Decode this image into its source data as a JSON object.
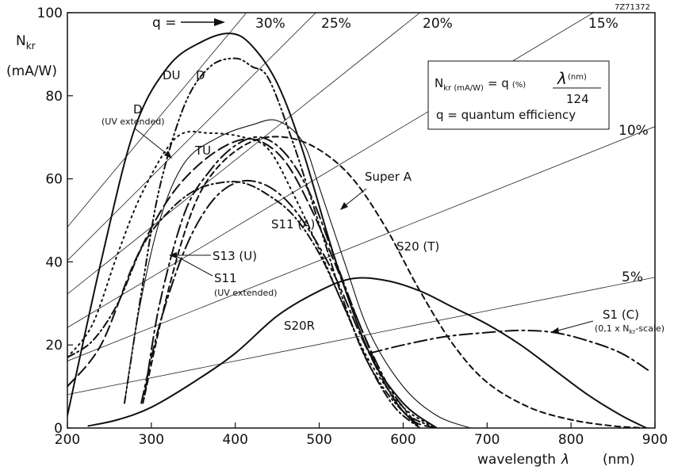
{
  "chart_data": {
    "type": "line",
    "figure_id": "7Z71372",
    "xaxis": {
      "label": "wavelength",
      "symbol": "λ",
      "unit": "(nm)",
      "range": [
        200,
        900
      ],
      "ticks": [
        "200",
        "300",
        "400",
        "500",
        "600",
        "700",
        "800",
        "900"
      ]
    },
    "yaxis": {
      "label_main": "N",
      "label_sub": "kr",
      "unit": "(mA/W)",
      "range": [
        0,
        100
      ],
      "ticks": [
        "0",
        "20",
        "40",
        "60",
        "80",
        "100"
      ]
    },
    "grid": false,
    "legend": "none",
    "formula_box": {
      "line1_lhs": "N",
      "line1_lhs_sub": "kr (mA/W)",
      "line1_eq": "= q",
      "line1_q_unit": "(%)",
      "line1_lambda": "λ",
      "line1_lambda_unit": "(nm)",
      "line1_denominator": "124",
      "line2": "q = quantum efficiency"
    },
    "q_indicator": {
      "label": "q =",
      "arrow": "→"
    },
    "q_lines": [
      {
        "label": "30%",
        "q": 30
      },
      {
        "label": "25%",
        "q": 25
      },
      {
        "label": "20%",
        "q": 20
      },
      {
        "label": "15%",
        "q": 15
      },
      {
        "label": "10%",
        "q": 10
      },
      {
        "label": "5%",
        "q": 5
      }
    ],
    "series": [
      {
        "name": "DU",
        "style": "solid",
        "points": [
          [
            200,
            3
          ],
          [
            240,
            40
          ],
          [
            280,
            72
          ],
          [
            320,
            87
          ],
          [
            360,
            93
          ],
          [
            395,
            95
          ],
          [
            420,
            92
          ],
          [
            450,
            83
          ],
          [
            480,
            67
          ],
          [
            520,
            40
          ],
          [
            560,
            18
          ],
          [
            600,
            6
          ],
          [
            640,
            0
          ]
        ]
      },
      {
        "name": "D",
        "style": "dash-dot-dot",
        "points": [
          [
            268,
            6
          ],
          [
            290,
            35
          ],
          [
            310,
            58
          ],
          [
            340,
            78
          ],
          [
            370,
            87
          ],
          [
            400,
            89
          ],
          [
            420,
            87
          ],
          [
            440,
            84
          ],
          [
            470,
            68
          ],
          [
            500,
            49
          ],
          [
            530,
            30
          ],
          [
            560,
            15
          ],
          [
            600,
            4
          ],
          [
            640,
            0
          ]
        ]
      },
      {
        "name": "D (UV extended)",
        "style": "dotted",
        "points": [
          [
            200,
            17
          ],
          [
            230,
            25
          ],
          [
            260,
            42
          ],
          [
            290,
            57
          ],
          [
            330,
            70
          ],
          [
            370,
            71
          ],
          [
            410,
            70
          ],
          [
            440,
            67
          ],
          [
            470,
            56
          ],
          [
            500,
            43
          ],
          [
            530,
            29
          ],
          [
            560,
            16
          ],
          [
            600,
            5
          ],
          [
            640,
            0
          ]
        ]
      },
      {
        "name": "TU",
        "style": "solid-thin",
        "points": [
          [
            268,
            6
          ],
          [
            285,
            28
          ],
          [
            310,
            50
          ],
          [
            340,
            64
          ],
          [
            380,
            70
          ],
          [
            420,
            73
          ],
          [
            450,
            74
          ],
          [
            480,
            69
          ],
          [
            500,
            58
          ],
          [
            530,
            40
          ],
          [
            560,
            23
          ],
          [
            600,
            10
          ],
          [
            640,
            3
          ],
          [
            680,
            0
          ]
        ]
      },
      {
        "name": "S11 (A)",
        "style": "long-dash-dot",
        "points": [
          [
            288,
            6
          ],
          [
            310,
            25
          ],
          [
            340,
            43
          ],
          [
            370,
            54
          ],
          [
            400,
            59
          ],
          [
            430,
            59
          ],
          [
            460,
            55
          ],
          [
            490,
            47
          ],
          [
            520,
            36
          ],
          [
            550,
            22
          ],
          [
            580,
            10
          ],
          [
            600,
            4
          ],
          [
            620,
            0
          ]
        ]
      },
      {
        "name": "S13 (U)",
        "style": "long-dash",
        "points": [
          [
            200,
            10
          ],
          [
            240,
            20
          ],
          [
            280,
            40
          ],
          [
            320,
            55
          ],
          [
            360,
            64
          ],
          [
            400,
            69
          ],
          [
            430,
            69
          ],
          [
            460,
            64
          ],
          [
            490,
            53
          ],
          [
            520,
            39
          ],
          [
            550,
            24
          ],
          [
            580,
            10
          ],
          [
            610,
            2
          ],
          [
            640,
            0
          ]
        ]
      },
      {
        "name": "S11 (UV extended)",
        "style": "dash-dot",
        "points": [
          [
            200,
            17
          ],
          [
            230,
            21
          ],
          [
            260,
            30
          ],
          [
            290,
            44
          ],
          [
            320,
            52
          ],
          [
            350,
            57
          ],
          [
            380,
            59
          ],
          [
            410,
            59
          ],
          [
            440,
            56
          ],
          [
            470,
            51
          ],
          [
            500,
            42
          ],
          [
            530,
            29
          ],
          [
            560,
            15
          ],
          [
            590,
            5
          ],
          [
            620,
            0
          ]
        ]
      },
      {
        "name": "Super A",
        "style": "long-dash-dot",
        "points": [
          [
            292,
            8
          ],
          [
            310,
            30
          ],
          [
            340,
            52
          ],
          [
            370,
            62
          ],
          [
            400,
            68
          ],
          [
            430,
            70
          ],
          [
            460,
            66
          ],
          [
            490,
            56
          ],
          [
            520,
            40
          ],
          [
            550,
            24
          ],
          [
            580,
            11
          ],
          [
            600,
            5
          ],
          [
            620,
            0
          ]
        ]
      },
      {
        "name": "S20 (T)",
        "style": "dashed",
        "points": [
          [
            290,
            6
          ],
          [
            320,
            33
          ],
          [
            350,
            53
          ],
          [
            380,
            63
          ],
          [
            420,
            69
          ],
          [
            460,
            70
          ],
          [
            500,
            67
          ],
          [
            540,
            60
          ],
          [
            580,
            48
          ],
          [
            620,
            33
          ],
          [
            660,
            20
          ],
          [
            700,
            11
          ],
          [
            750,
            5
          ],
          [
            800,
            2
          ],
          [
            850,
            0.5
          ],
          [
            890,
            0
          ]
        ]
      },
      {
        "name": "S20R",
        "style": "solid",
        "points": [
          [
            225,
            0.5
          ],
          [
            260,
            2
          ],
          [
            300,
            5
          ],
          [
            350,
            11
          ],
          [
            400,
            18
          ],
          [
            450,
            27
          ],
          [
            500,
            33
          ],
          [
            540,
            36
          ],
          [
            580,
            35.5
          ],
          [
            620,
            33
          ],
          [
            660,
            29
          ],
          [
            700,
            25
          ],
          [
            740,
            20
          ],
          [
            780,
            14
          ],
          [
            820,
            8
          ],
          [
            860,
            3
          ],
          [
            890,
            0
          ]
        ]
      },
      {
        "name": "S1 (C)",
        "style": "long-dash-dot",
        "note": "(0,1 x N",
        "note_sub": "kr",
        "note_tail": "-scale)",
        "points": [
          [
            560,
            18
          ],
          [
            600,
            20
          ],
          [
            650,
            22
          ],
          [
            700,
            23
          ],
          [
            740,
            23.5
          ],
          [
            780,
            23
          ],
          [
            820,
            21
          ],
          [
            860,
            18
          ],
          [
            895,
            13.5
          ]
        ]
      }
    ],
    "annotations": [
      {
        "text": "DU"
      },
      {
        "text": "D"
      },
      {
        "text": "D"
      },
      {
        "text": "(UV extended)"
      },
      {
        "text": "TU"
      },
      {
        "text": "Super A"
      },
      {
        "text": "S11 (A)"
      },
      {
        "text": "S13 (U)"
      },
      {
        "text": "S11"
      },
      {
        "text": "(UV extended)"
      },
      {
        "text": "S20 (T)"
      },
      {
        "text": "S20R"
      },
      {
        "text": "S1 (C)"
      }
    ]
  }
}
